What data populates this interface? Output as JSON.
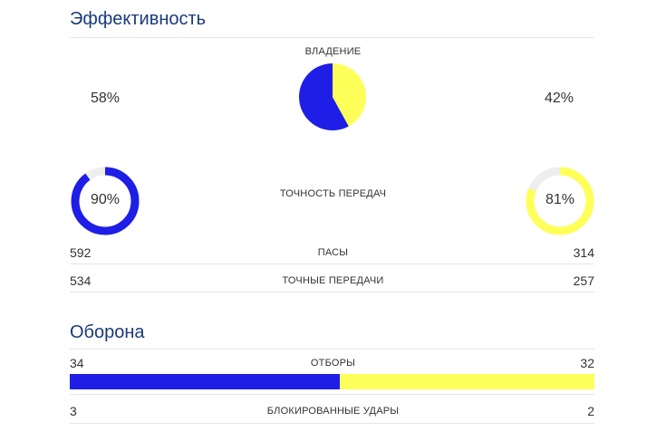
{
  "colors": {
    "home": "#1e1ee6",
    "away": "#ffff5a",
    "track": "#eeeeee",
    "title": "#1a3a7a"
  },
  "efficiency": {
    "title": "Эффективность",
    "possession": {
      "label": "ВЛАДЕНИЕ",
      "home_text": "58%",
      "away_text": "42%",
      "home_value": 58,
      "away_value": 42
    },
    "pass_accuracy": {
      "label": "ТОЧНОСТЬ ПЕРЕДАЧ",
      "home_text": "90%",
      "away_text": "81%",
      "home_value": 90,
      "away_value": 81
    },
    "rows": [
      {
        "label": "ПАСЫ",
        "home": "592",
        "away": "314"
      },
      {
        "label": "ТОЧНЫЕ ПЕРЕДАЧИ",
        "home": "534",
        "away": "257"
      }
    ]
  },
  "defense": {
    "title": "Оборона",
    "tackles": {
      "label": "ОТБОРЫ",
      "home": "34",
      "away": "32",
      "home_value": 34,
      "away_value": 32
    },
    "rows": [
      {
        "label": "БЛОКИРОВАННЫЕ УДАРЫ",
        "home": "3",
        "away": "2"
      }
    ]
  }
}
